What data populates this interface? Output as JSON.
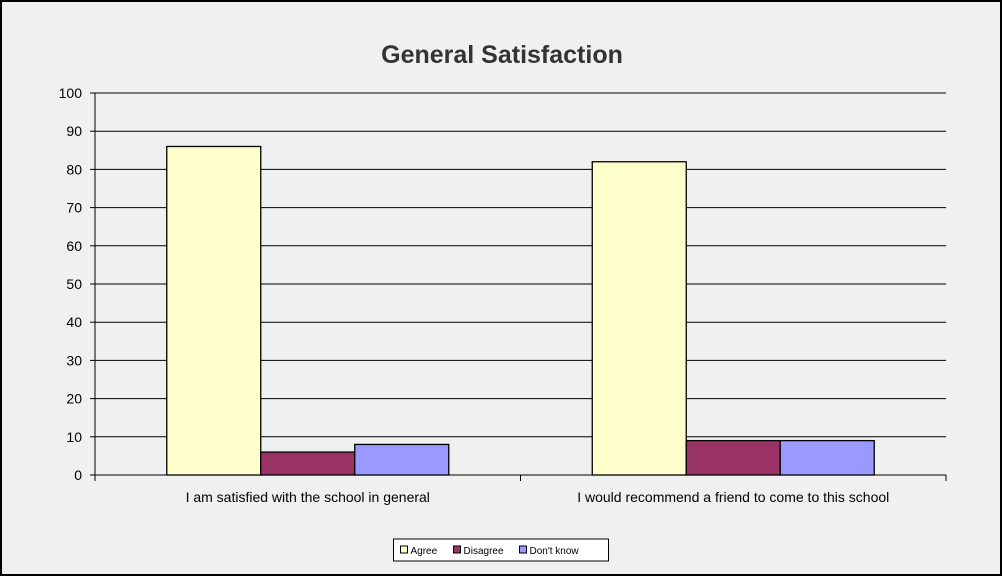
{
  "chart_data": {
    "type": "bar",
    "title": "General Satisfaction",
    "xlabel": "",
    "ylabel": "",
    "ylim": [
      0,
      100
    ],
    "yticks": [
      0,
      10,
      20,
      30,
      40,
      50,
      60,
      70,
      80,
      90,
      100
    ],
    "grid": true,
    "legend_position": "bottom",
    "categories": [
      "I am satisfied with the school in general",
      "I would recommend a friend to come to this school"
    ],
    "series": [
      {
        "name": "Agree",
        "values": [
          86,
          82
        ],
        "color": "#ffffcc"
      },
      {
        "name": "Disagree",
        "values": [
          6,
          9
        ],
        "color": "#993366"
      },
      {
        "name": "Don't know",
        "values": [
          8,
          9
        ],
        "color": "#9999ff"
      }
    ],
    "colors": {
      "plot_background": "#f0f0f0",
      "frame_border": "#000000",
      "gridline": "#000000",
      "bar_outline": "#000000"
    }
  }
}
